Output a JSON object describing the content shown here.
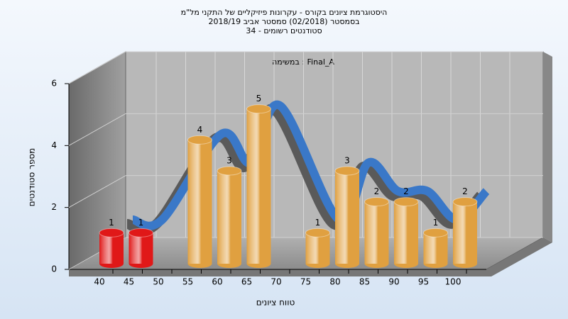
{
  "chart_data": {
    "type": "bar3d",
    "title": [
      "היסטוגרמת ציונים בקורס - עקרונות פיזיקליים של התקני מל\"מ",
      "בסמסטר  (02/2018)  סמסטר אביב 2018/19",
      "סטודנטים רשומים - 34"
    ],
    "annotation": "במשימה : Final_A",
    "x_label": "טווח ציונים",
    "y_label": "מספר סטודנטים",
    "categories": [
      "40",
      "45",
      "50",
      "55",
      "60",
      "65",
      "70",
      "75",
      "80",
      "85",
      "90",
      "95",
      "100"
    ],
    "values": [
      1,
      1,
      null,
      4,
      3,
      5,
      null,
      1,
      3,
      2,
      2,
      1,
      2
    ],
    "colors": [
      "#e01818",
      "#e01818",
      null,
      "#e0a040",
      "#e0a040",
      "#e0a040",
      null,
      "#e0a040",
      "#e0a040",
      "#e0a040",
      "#e0a040",
      "#e0a040",
      "#e0a040"
    ],
    "ribbon_color": "#3a78c8",
    "ylim": [
      0,
      6
    ],
    "yticks": [
      0,
      2,
      4,
      6
    ],
    "grid": true
  }
}
